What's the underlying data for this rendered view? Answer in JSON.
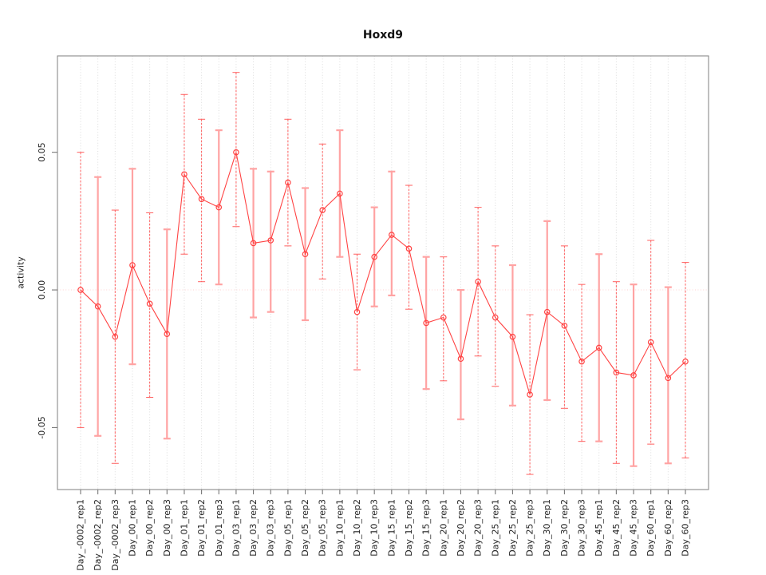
{
  "chart_data": {
    "type": "line",
    "title": "Hoxd9",
    "xlabel": "",
    "ylabel": "activity",
    "ylim": [
      -0.0725,
      0.085
    ],
    "yticks": [
      -0.05,
      0,
      0.05
    ],
    "ytick_labels": [
      "-0.05",
      "0.00",
      "0.05"
    ],
    "grid": "vertical-dotted",
    "zero_line": true,
    "legend": "none",
    "categories": [
      "Day_-0002_rep1",
      "Day_-0002_rep2",
      "Day_-0002_rep3",
      "Day_00_rep1",
      "Day_00_rep2",
      "Day_00_rep3",
      "Day_01_rep1",
      "Day_01_rep2",
      "Day_01_rep3",
      "Day_03_rep1",
      "Day_03_rep2",
      "Day_03_rep3",
      "Day_05_rep1",
      "Day_05_rep2",
      "Day_05_rep3",
      "Day_10_rep1",
      "Day_10_rep2",
      "Day_10_rep3",
      "Day_15_rep1",
      "Day_15_rep2",
      "Day_15_rep3",
      "Day_20_rep1",
      "Day_20_rep2",
      "Day_20_rep3",
      "Day_25_rep1",
      "Day_25_rep2",
      "Day_25_rep3",
      "Day_30_rep1",
      "Day_30_rep2",
      "Day_30_rep3",
      "Day_45_rep1",
      "Day_45_rep2",
      "Day_45_rep3",
      "Day_60_rep1",
      "Day_60_rep2",
      "Day_60_rep3"
    ],
    "series": [
      {
        "name": "activity",
        "values": [
          0.0,
          -0.006,
          -0.017,
          0.009,
          -0.005,
          -0.016,
          0.042,
          0.033,
          0.03,
          0.05,
          0.017,
          0.018,
          0.039,
          0.013,
          0.029,
          0.035,
          -0.008,
          0.012,
          0.02,
          0.015,
          -0.012,
          -0.01,
          -0.025,
          0.003,
          -0.01,
          -0.017,
          -0.038,
          -0.008,
          -0.013,
          -0.026,
          -0.021,
          -0.03,
          -0.031,
          -0.019,
          -0.032,
          -0.026
        ],
        "ci_low": [
          -0.05,
          -0.053,
          -0.063,
          -0.027,
          -0.039,
          -0.054,
          0.013,
          0.003,
          0.002,
          0.023,
          -0.01,
          -0.008,
          0.016,
          -0.011,
          0.004,
          0.012,
          -0.029,
          -0.006,
          -0.002,
          -0.007,
          -0.036,
          -0.033,
          -0.047,
          -0.024,
          -0.035,
          -0.042,
          -0.067,
          -0.04,
          -0.043,
          -0.055,
          -0.055,
          -0.063,
          -0.064,
          -0.056,
          -0.063,
          -0.061
        ],
        "ci_high": [
          0.05,
          0.041,
          0.029,
          0.044,
          0.028,
          0.022,
          0.071,
          0.062,
          0.058,
          0.079,
          0.044,
          0.043,
          0.062,
          0.037,
          0.053,
          0.058,
          0.013,
          0.03,
          0.043,
          0.038,
          0.012,
          0.012,
          0.0,
          0.03,
          0.016,
          0.009,
          -0.009,
          0.025,
          0.016,
          0.002,
          0.013,
          0.003,
          0.002,
          0.018,
          0.001,
          0.01
        ],
        "error_bar_styles": [
          "dashed",
          "solid",
          "dashed",
          "solid",
          "dashed",
          "solid",
          "dashed",
          "dashed",
          "solid",
          "dashed",
          "solid",
          "solid",
          "dashed",
          "solid",
          "dashed",
          "solid",
          "dashed",
          "solid",
          "solid",
          "dashed",
          "solid",
          "dashed",
          "solid",
          "dashed",
          "dashed",
          "solid",
          "dashed",
          "solid",
          "dashed",
          "dashed",
          "solid",
          "dashed",
          "solid",
          "dashed",
          "solid",
          "dashed"
        ]
      }
    ],
    "colors": {
      "point": "#ff4343",
      "line": "#ff4343",
      "error_dashed": "#ff6060",
      "error_solid": "#ffa3a3",
      "zero_line": "#ffd2d2",
      "grid": "#dcdcdc",
      "box": "#8a8a8a",
      "tick": "#777777",
      "text": "#222222"
    }
  }
}
